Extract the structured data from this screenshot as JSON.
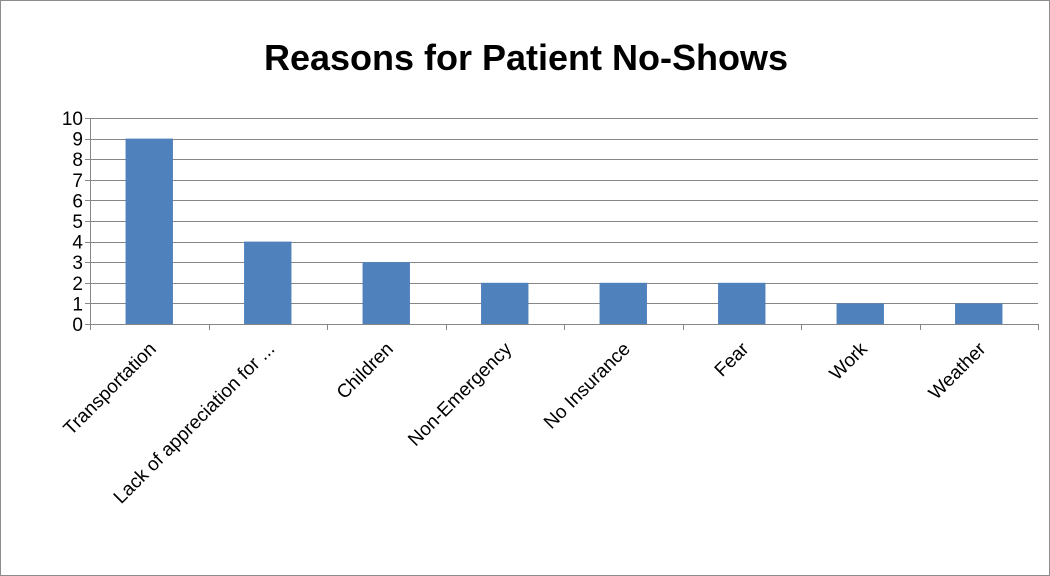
{
  "chart_data": {
    "type": "bar",
    "title": "Reasons for Patient No-Shows",
    "xlabel": "",
    "ylabel": "",
    "categories": [
      "Transportation",
      "Lack of appreciation for ...",
      "Children",
      "Non-Emergency",
      "No Insurance",
      "Fear",
      "Work",
      "Weather"
    ],
    "values": [
      9,
      4,
      3,
      2,
      2,
      2,
      1,
      1
    ],
    "ylim": [
      0,
      10
    ],
    "yticks": [
      0,
      1,
      2,
      3,
      4,
      5,
      6,
      7,
      8,
      9,
      10
    ],
    "grid": true,
    "legend": "none",
    "bar_color": "#4f81bd",
    "grid_color": "#868686"
  }
}
